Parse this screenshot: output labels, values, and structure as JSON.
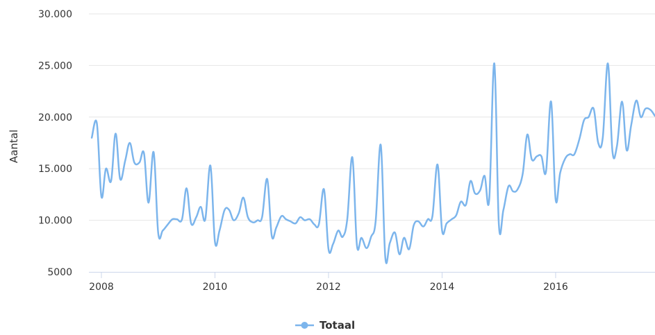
{
  "chart_data": {
    "type": "line",
    "xlabel": "",
    "ylabel": "Aantal",
    "xlim": [
      2007.78,
      2017.75
    ],
    "ylim": [
      5000,
      30000
    ],
    "y_ticks": [
      {
        "value": 5000,
        "label": "5000"
      },
      {
        "value": 10000,
        "label": "10.000"
      },
      {
        "value": 15000,
        "label": "15.000"
      },
      {
        "value": 20000,
        "label": "20.000"
      },
      {
        "value": 25000,
        "label": "25.000"
      },
      {
        "value": 30000,
        "label": "30.000"
      }
    ],
    "x_ticks": [
      {
        "value": 2008,
        "label": "2008"
      },
      {
        "value": 2010,
        "label": "2010"
      },
      {
        "value": 2012,
        "label": "2012"
      },
      {
        "value": 2014,
        "label": "2014"
      },
      {
        "value": 2016,
        "label": "2016"
      }
    ],
    "grid": "horizontal",
    "legend_position": "bottom-center",
    "series": [
      {
        "name": "Totaal",
        "color": "#7cb5ec",
        "x": [
          2007.83,
          2007.92,
          2008.0,
          2008.08,
          2008.17,
          2008.25,
          2008.33,
          2008.42,
          2008.5,
          2008.58,
          2008.67,
          2008.75,
          2008.83,
          2008.92,
          2009.0,
          2009.08,
          2009.17,
          2009.25,
          2009.33,
          2009.42,
          2009.5,
          2009.58,
          2009.67,
          2009.75,
          2009.83,
          2009.92,
          2010.0,
          2010.08,
          2010.17,
          2010.25,
          2010.33,
          2010.42,
          2010.5,
          2010.58,
          2010.67,
          2010.75,
          2010.83,
          2010.92,
          2011.0,
          2011.08,
          2011.17,
          2011.25,
          2011.33,
          2011.42,
          2011.5,
          2011.58,
          2011.67,
          2011.75,
          2011.83,
          2011.92,
          2012.0,
          2012.08,
          2012.17,
          2012.25,
          2012.33,
          2012.42,
          2012.5,
          2012.58,
          2012.67,
          2012.75,
          2012.83,
          2012.92,
          2013.0,
          2013.08,
          2013.17,
          2013.25,
          2013.33,
          2013.42,
          2013.5,
          2013.58,
          2013.67,
          2013.75,
          2013.83,
          2013.92,
          2014.0,
          2014.08,
          2014.17,
          2014.25,
          2014.33,
          2014.42,
          2014.5,
          2014.58,
          2014.67,
          2014.75,
          2014.83,
          2014.92,
          2015.0,
          2015.08,
          2015.17,
          2015.25,
          2015.33,
          2015.42,
          2015.5,
          2015.58,
          2015.67,
          2015.75,
          2015.83,
          2015.92,
          2016.0,
          2016.08,
          2016.17,
          2016.25,
          2016.33,
          2016.42,
          2016.5,
          2016.58,
          2016.67,
          2016.75,
          2016.83,
          2016.92,
          2017.0,
          2017.08,
          2017.17,
          2017.25,
          2017.33,
          2017.42,
          2017.5,
          2017.58,
          2017.67,
          2017.75
        ],
        "values": [
          18000,
          19400,
          12300,
          15000,
          13800,
          18400,
          14000,
          15800,
          17500,
          15600,
          15600,
          16500,
          11700,
          16600,
          8800,
          9000,
          9600,
          10100,
          10100,
          10100,
          13100,
          9700,
          10300,
          11300,
          10100,
          15300,
          7900,
          9000,
          11000,
          11000,
          10000,
          10700,
          12200,
          10300,
          9800,
          10000,
          10300,
          14000,
          8500,
          9300,
          10400,
          10100,
          9900,
          9700,
          10300,
          10000,
          10100,
          9600,
          9600,
          13000,
          7200,
          7700,
          9000,
          8400,
          10100,
          16100,
          7600,
          8300,
          7300,
          8400,
          9900,
          17300,
          6400,
          7800,
          8800,
          6700,
          8300,
          7200,
          9500,
          9900,
          9400,
          10100,
          10400,
          15400,
          9000,
          9700,
          10100,
          10500,
          11800,
          11500,
          13800,
          12600,
          12900,
          14300,
          12000,
          25200,
          9600,
          11000,
          13300,
          12800,
          13000,
          14500,
          18300,
          15900,
          16200,
          16200,
          14700,
          21500,
          12000,
          14600,
          16000,
          16400,
          16400,
          17900,
          19700,
          20000,
          20800,
          17500,
          18000,
          25200,
          16700,
          17200,
          21500,
          16800,
          19200,
          21600,
          20000,
          20800,
          20700,
          20100
        ]
      }
    ]
  }
}
